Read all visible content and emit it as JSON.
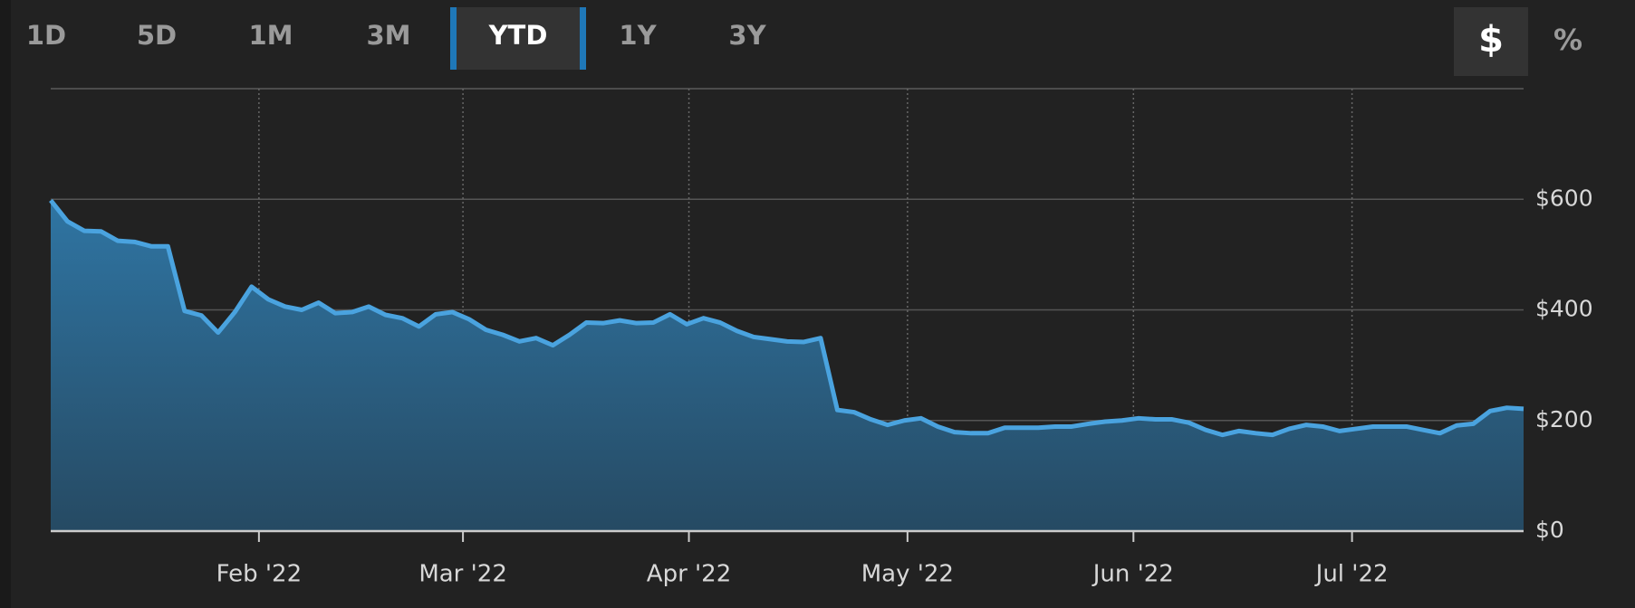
{
  "tabs": {
    "items": [
      "1D",
      "5D",
      "1M",
      "3M",
      "YTD",
      "1Y",
      "3Y"
    ],
    "active": 4
  },
  "unit_toggle": {
    "items": [
      "$",
      "%"
    ],
    "active": 0
  },
  "chart_data": {
    "type": "area",
    "values": [
      598,
      560,
      543,
      542,
      525,
      523,
      515,
      515,
      398,
      390,
      359,
      396,
      442,
      419,
      406,
      400,
      413,
      394,
      396,
      406,
      391,
      385,
      370,
      392,
      396,
      383,
      364,
      355,
      343,
      349,
      336,
      355,
      377,
      376,
      381,
      376,
      377,
      392,
      374,
      385,
      377,
      362,
      351,
      347,
      343,
      342,
      349,
      219,
      215,
      202,
      192,
      200,
      204,
      189,
      179,
      177,
      177,
      187,
      187,
      187,
      189,
      189,
      194,
      198,
      200,
      204,
      202,
      202,
      196,
      183,
      174,
      181,
      177,
      174,
      185,
      192,
      189,
      181,
      185,
      189,
      189,
      189,
      183,
      177,
      191,
      194,
      217,
      223,
      221
    ],
    "xlim": [
      0,
      88
    ],
    "xticks": [
      {
        "value": 12.44,
        "label": "Feb '22"
      },
      {
        "value": 24.63,
        "label": "Mar '22"
      },
      {
        "value": 38.13,
        "label": "Apr '22"
      },
      {
        "value": 51.19,
        "label": "May '22"
      },
      {
        "value": 64.69,
        "label": "Jun '22"
      },
      {
        "value": 77.75,
        "label": "Jul '22"
      }
    ],
    "ylim": [
      0,
      800
    ],
    "yticks": [
      {
        "value": 0,
        "label": "$0"
      },
      {
        "value": 200,
        "label": "$200"
      },
      {
        "value": 400,
        "label": "$400"
      },
      {
        "value": 600,
        "label": "$600"
      }
    ],
    "color": "#4aa3df",
    "grid": true
  }
}
